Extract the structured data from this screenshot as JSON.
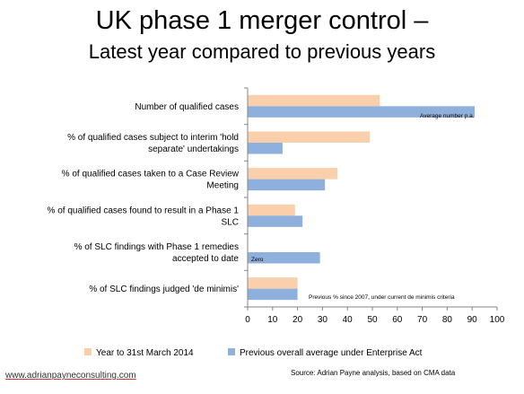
{
  "slide": {
    "title": "UK phase 1 merger control –",
    "subtitle": "Latest year compared to previous years",
    "website": "www.adrianpayneconsulting.com",
    "source": "Source: Adrian Payne analysis, based on CMA data"
  },
  "colors": {
    "series_latest": "#f9cfac",
    "series_previous": "#8fb0dc",
    "axis": "#868686"
  },
  "chart_data": {
    "type": "bar",
    "orientation": "horizontal",
    "categories": [
      "Number of qualified cases",
      "% of qualified cases subject to interim 'hold separate' undertakings",
      "% of qualified cases taken to a Case Review Meeting",
      "% of qualified cases found to result in a Phase 1 SLC",
      "% of SLC findings with  Phase 1 remedies accepted to date",
      "% of SLC findings judged 'de minimis'"
    ],
    "series": [
      {
        "name": "Year to 31st March 2014",
        "values": [
          53,
          49,
          36,
          19,
          0,
          20
        ]
      },
      {
        "name": "Previous overall average under Enterprise Act",
        "values": [
          91,
          14,
          31,
          22,
          29,
          20
        ]
      }
    ],
    "annotations": [
      {
        "category": 0,
        "text": "Average number p.a."
      },
      {
        "category": 4,
        "text": "Zero"
      },
      {
        "category": 5,
        "text": "Previous % since 2007, under current de minimis criteria"
      }
    ],
    "xlim": [
      0,
      100
    ],
    "xticks": [
      0,
      10,
      20,
      30,
      40,
      50,
      60,
      70,
      80,
      90,
      100
    ],
    "grid": false,
    "legend": "bottom"
  }
}
